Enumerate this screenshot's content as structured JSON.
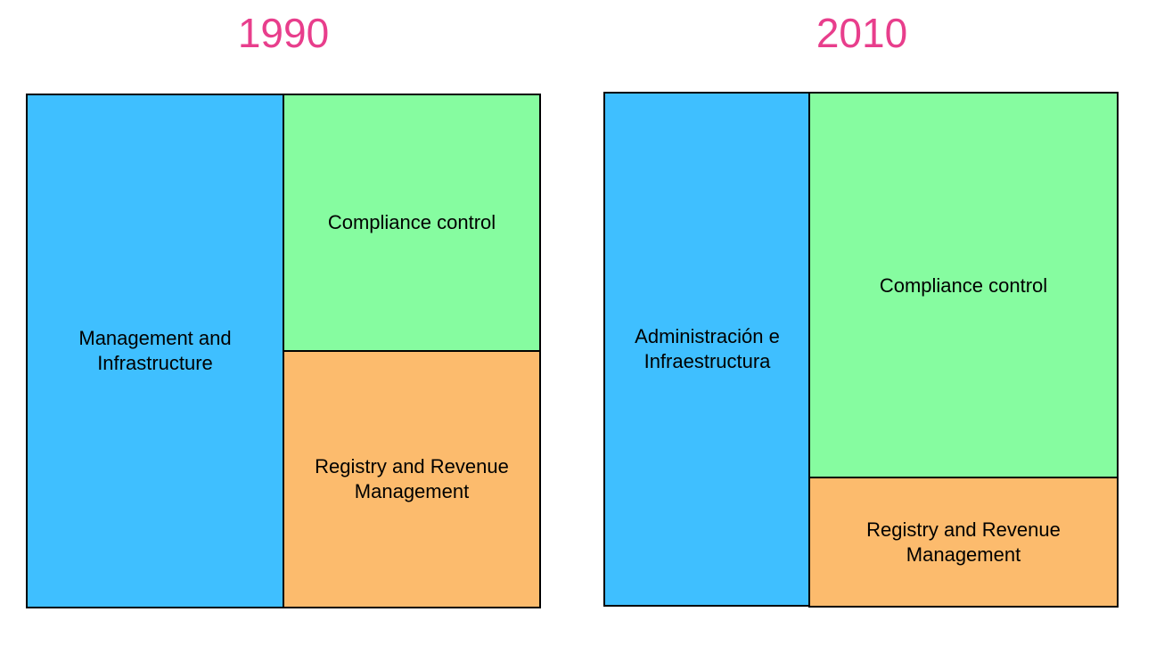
{
  "colors": {
    "title": "#e83e8c",
    "management": "#3fbfff",
    "compliance": "#86fca0",
    "registry": "#fcbb6d"
  },
  "panels": [
    {
      "year": "1990",
      "management_label": "Management and Infrastructure",
      "compliance_label": "Compliance control",
      "registry_label": "Registry and Revenue Management"
    },
    {
      "year": "2010",
      "management_label": "Administración e Infraestructura",
      "compliance_label": "Compliance control",
      "registry_label": "Registry and Revenue Management"
    }
  ]
}
